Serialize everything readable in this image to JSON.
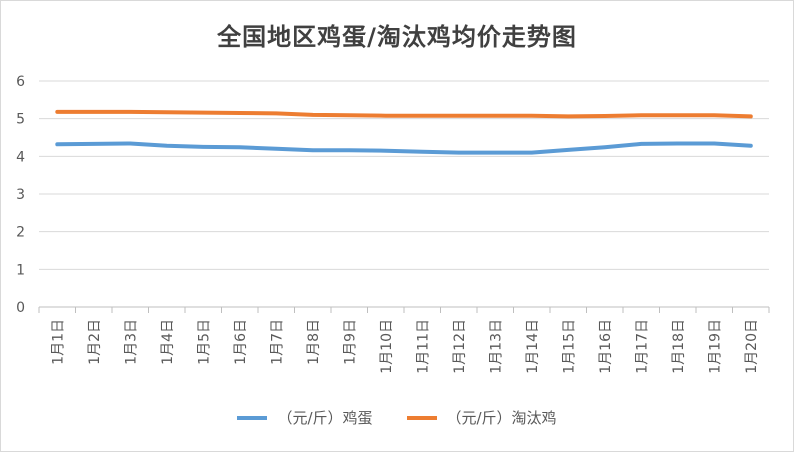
{
  "chart_data": {
    "type": "line",
    "title": "全国地区鸡蛋/淘汰鸡均价走势图",
    "categories": [
      "1月1日",
      "1月2日",
      "1月3日",
      "1月4日",
      "1月5日",
      "1月6日",
      "1月7日",
      "1月8日",
      "1月9日",
      "1月10日",
      "1月11日",
      "1月12日",
      "1月13日",
      "1月14日",
      "1月15日",
      "1月16日",
      "1月17日",
      "1月18日",
      "1月19日",
      "1月20日"
    ],
    "series": [
      {
        "name": "（元/斤）鸡蛋",
        "color": "#5b9bd5",
        "values": [
          4.32,
          4.33,
          4.34,
          4.28,
          4.25,
          4.24,
          4.2,
          4.16,
          4.16,
          4.15,
          4.12,
          4.1,
          4.1,
          4.1,
          4.17,
          4.24,
          4.33,
          4.34,
          4.34,
          4.28
        ]
      },
      {
        "name": "（元/斤）淘汰鸡",
        "color": "#ed7d31",
        "values": [
          5.18,
          5.18,
          5.18,
          5.17,
          5.16,
          5.15,
          5.14,
          5.1,
          5.09,
          5.08,
          5.08,
          5.08,
          5.08,
          5.08,
          5.06,
          5.07,
          5.09,
          5.09,
          5.09,
          5.06
        ]
      }
    ],
    "yticks": [
      "0",
      "1",
      "2",
      "3",
      "4",
      "5",
      "6"
    ],
    "ylim": [
      0,
      6
    ],
    "grid": true,
    "legend": "bottom"
  }
}
